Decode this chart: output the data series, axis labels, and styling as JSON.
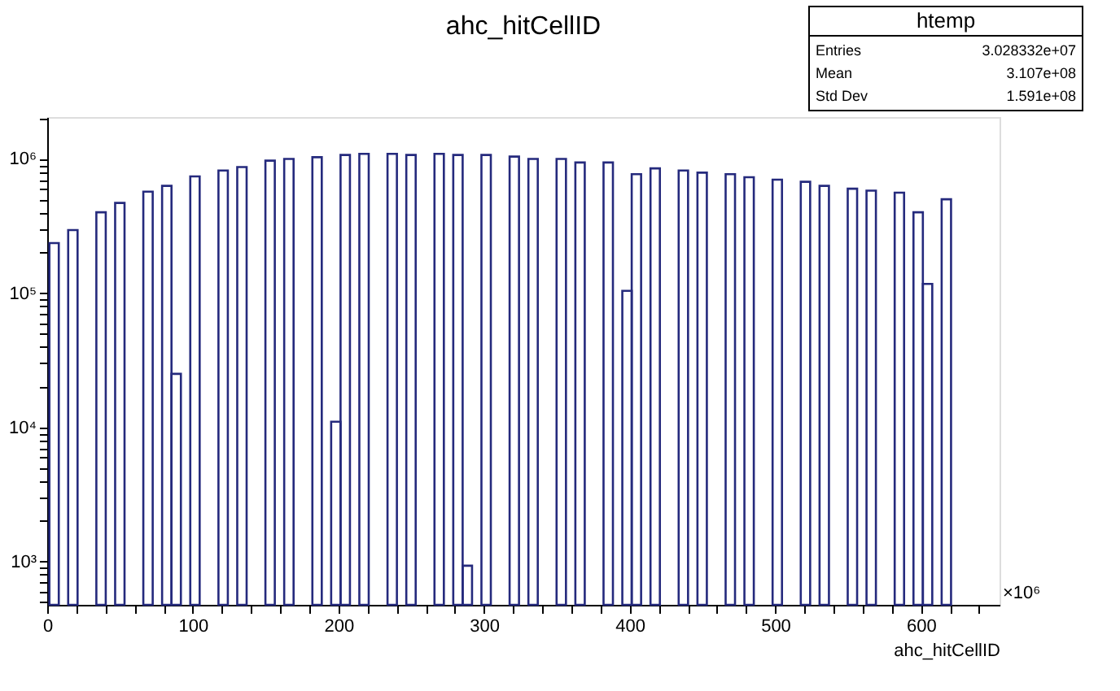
{
  "chart_data": {
    "type": "histogram",
    "title": "ahc_hitCellID",
    "xlabel": "ahc_hitCellID",
    "annotations": [
      "htemp",
      "Entries",
      "3.028332e+07",
      "Mean",
      "3.107e+08",
      "Std Dev",
      "1.591e+08",
      "×10⁶"
    ],
    "bins": [
      1.5,
      7.95,
      14.4,
      20.85,
      27.3,
      33.75,
      40.2,
      46.65,
      53.1,
      59.55,
      66,
      72.45,
      78.9,
      85.35,
      91.8,
      98.25,
      104.7,
      111.15,
      117.6,
      124.05,
      130.5,
      136.95,
      143.4,
      149.85,
      156.3,
      162.75,
      169.2,
      175.65,
      182.1,
      188.55,
      195,
      201.45,
      207.9,
      214.35,
      220.8,
      227.25,
      233.7,
      240.15,
      246.6,
      253.05,
      259.5,
      265.95,
      272.4,
      278.85,
      285.3,
      291.75,
      298.2,
      304.65,
      311.1,
      317.55,
      324,
      330.45,
      336.9,
      343.35,
      349.8,
      356.25,
      362.7,
      369.15,
      375.6,
      382.05,
      388.5,
      394.95,
      401.4,
      407.85,
      414.3,
      420.75,
      427.2,
      433.65,
      440.1,
      446.55,
      453,
      459.45,
      465.9,
      472.35,
      478.8,
      485.25,
      491.7,
      498.15,
      504.6,
      511.05,
      517.5,
      523.95,
      530.4,
      536.85,
      543.3,
      549.75,
      556.2,
      562.65,
      569.1,
      575.55,
      582,
      588.45,
      594.9,
      601.35,
      607.8,
      614.25,
      620.7
    ],
    "values": [
      236000,
      null,
      295000,
      null,
      null,
      400000,
      null,
      470000,
      null,
      null,
      570000,
      null,
      630000,
      25000,
      null,
      740000,
      null,
      null,
      820000,
      null,
      870000,
      null,
      null,
      970000,
      null,
      1000000,
      null,
      null,
      1030000,
      null,
      11000,
      1070000,
      null,
      1090000,
      null,
      null,
      1090000,
      null,
      1070000,
      null,
      null,
      1090000,
      null,
      1070000,
      930,
      null,
      1070000,
      null,
      null,
      1040000,
      null,
      1000000,
      null,
      null,
      1000000,
      null,
      940000,
      null,
      null,
      940000,
      null,
      104000,
      770000,
      null,
      850000,
      null,
      null,
      820000,
      null,
      790000,
      null,
      null,
      770000,
      null,
      730000,
      null,
      null,
      700000,
      null,
      null,
      675000,
      null,
      630000,
      null,
      null,
      600000,
      null,
      580000,
      null,
      null,
      560000,
      null,
      400000,
      117000,
      null,
      500000
    ],
    "color": "#252a7d",
    "log": true,
    "grid": false,
    "xlim": [
      0,
      654
    ],
    "xticks": [
      0,
      {
        "value": 20,
        "label": null
      },
      {
        "value": 40,
        "label": null
      },
      {
        "value": 60,
        "label": null
      },
      {
        "value": 80,
        "label": null
      },
      100,
      {
        "value": 120,
        "label": null
      },
      {
        "value": 140,
        "label": null
      },
      {
        "value": 160,
        "label": null
      },
      {
        "value": 180,
        "label": null
      },
      200,
      {
        "value": 220,
        "label": null
      },
      {
        "value": 240,
        "label": null
      },
      {
        "value": 260,
        "label": null
      },
      {
        "value": 280,
        "label": null
      },
      300,
      {
        "value": 320,
        "label": null
      },
      {
        "value": 340,
        "label": null
      },
      {
        "value": 360,
        "label": null
      },
      {
        "value": 380,
        "label": null
      },
      400,
      {
        "value": 420,
        "label": null
      },
      {
        "value": 440,
        "label": null
      },
      {
        "value": 460,
        "label": null
      },
      {
        "value": 480,
        "label": null
      },
      500,
      {
        "value": 520,
        "label": null
      },
      {
        "value": 540,
        "label": null
      },
      {
        "value": 560,
        "label": null
      },
      {
        "value": 580,
        "label": null
      },
      600,
      {
        "value": 620,
        "label": null
      },
      {
        "value": 640,
        "label": null
      }
    ],
    "ylim": [
      475,
      2050000
    ],
    "yticks": [
      {
        "value": 500,
        "label": null
      },
      {
        "value": 600,
        "label": null
      },
      {
        "value": 700,
        "label": null
      },
      {
        "value": 800,
        "label": null
      },
      {
        "value": 900,
        "label": null
      },
      {
        "value": 1000,
        "label": "10³"
      },
      {
        "value": 2000,
        "label": null
      },
      {
        "value": 3000,
        "label": null
      },
      {
        "value": 4000,
        "label": null
      },
      {
        "value": 5000,
        "label": null
      },
      {
        "value": 6000,
        "label": null
      },
      {
        "value": 7000,
        "label": null
      },
      {
        "value": 8000,
        "label": null
      },
      {
        "value": 9000,
        "label": null
      },
      {
        "value": 10000,
        "label": "10⁴"
      },
      {
        "value": 20000,
        "label": null
      },
      {
        "value": 30000,
        "label": null
      },
      {
        "value": 40000,
        "label": null
      },
      {
        "value": 50000,
        "label": null
      },
      {
        "value": 60000,
        "label": null
      },
      {
        "value": 70000,
        "label": null
      },
      {
        "value": 80000,
        "label": null
      },
      {
        "value": 90000,
        "label": null
      },
      {
        "value": 100000,
        "label": "10⁵"
      },
      {
        "value": 200000,
        "label": null
      },
      {
        "value": 300000,
        "label": null
      },
      {
        "value": 400000,
        "label": null
      },
      {
        "value": 500000,
        "label": null
      },
      {
        "value": 600000,
        "label": null
      },
      {
        "value": 700000,
        "label": null
      },
      {
        "value": 800000,
        "label": null
      },
      {
        "value": 900000,
        "label": null
      },
      {
        "value": 1000000,
        "label": "10⁶"
      },
      {
        "value": 2000000,
        "label": null
      }
    ]
  }
}
